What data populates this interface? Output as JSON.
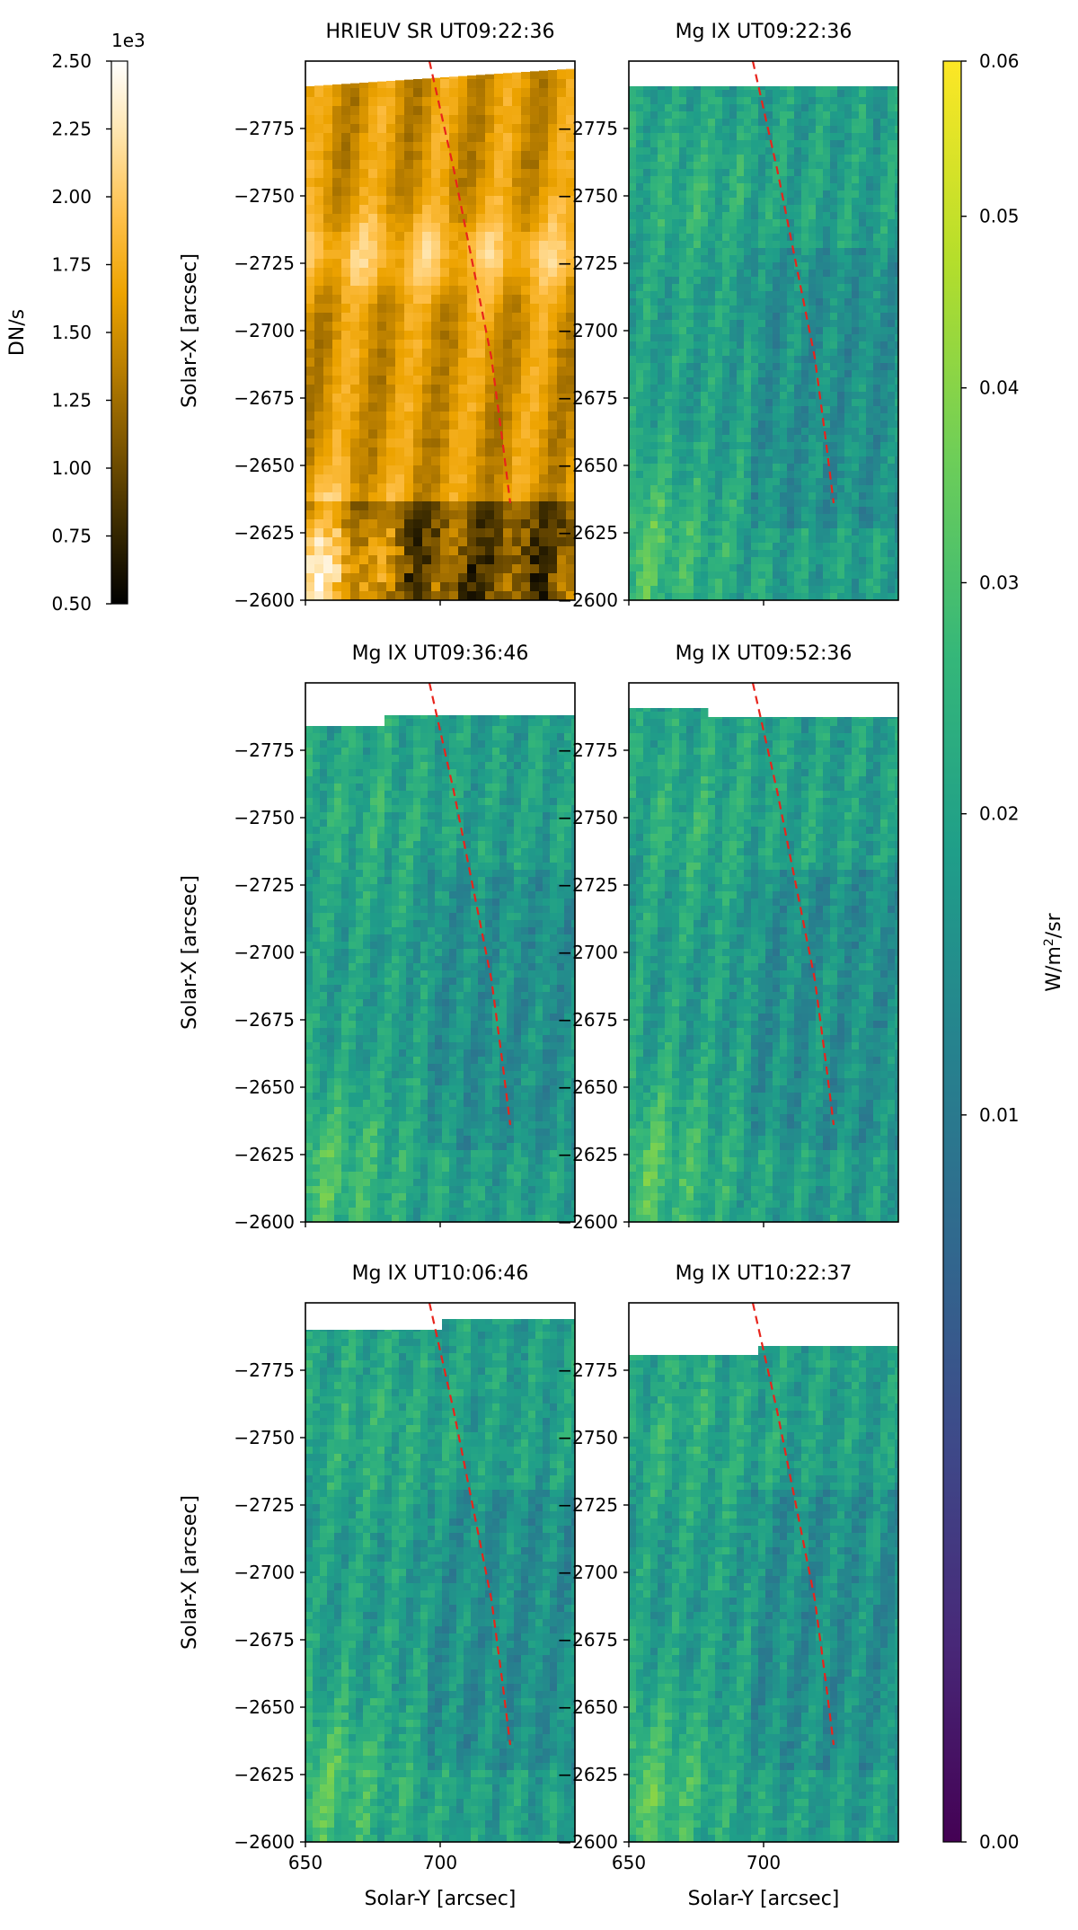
{
  "panels": [
    {
      "id": "p1",
      "title": "HRIEUV SR UT09:22:36",
      "kind": "hrieuv",
      "show_ylabel": true,
      "show_xlabel": false,
      "show_xticklabels": false
    },
    {
      "id": "p2",
      "title": "Mg IX UT09:22:36",
      "kind": "mgix",
      "show_ylabel": false,
      "show_xlabel": false,
      "show_xticklabels": false
    },
    {
      "id": "p3",
      "title": "Mg IX UT09:36:46",
      "kind": "mgix",
      "show_ylabel": true,
      "show_xlabel": false,
      "show_xticklabels": false
    },
    {
      "id": "p4",
      "title": "Mg IX UT09:52:36",
      "kind": "mgix",
      "show_ylabel": false,
      "show_xlabel": false,
      "show_xticklabels": false
    },
    {
      "id": "p5",
      "title": "Mg IX UT10:06:46",
      "kind": "mgix",
      "show_ylabel": true,
      "show_xlabel": true,
      "show_xticklabels": true
    },
    {
      "id": "p6",
      "title": "Mg IX UT10:22:37",
      "kind": "mgix",
      "show_ylabel": false,
      "show_xlabel": true,
      "show_xticklabels": true
    }
  ],
  "axes": {
    "xlabel": "Solar-Y [arcsec]",
    "ylabel": "Solar-X [arcsec]",
    "x_ticks": [
      650,
      700
    ],
    "x_tick_labels": [
      "650",
      "700"
    ],
    "x_range": [
      650,
      750
    ],
    "y_ticks": [
      -2775,
      -2750,
      -2725,
      -2700,
      -2675,
      -2650,
      -2625,
      -2600
    ],
    "y_tick_labels": [
      "−2775",
      "−2750",
      "−2725",
      "−2700",
      "−2675",
      "−2650",
      "−2625",
      "−2600"
    ],
    "y_range": [
      -2800,
      -2600
    ],
    "y_inverted": true
  },
  "track_path": {
    "note_units": "data",
    "points": [
      [
        696,
        -2800
      ],
      [
        705,
        -2760
      ],
      [
        713,
        -2720
      ],
      [
        719,
        -2690
      ],
      [
        723,
        -2660
      ],
      [
        726,
        -2636
      ]
    ]
  },
  "colorbar_hri": {
    "label": "DN/s",
    "scale_exponent": "1e3",
    "tick_values": [
      2.5,
      2.25,
      2.0,
      1.75,
      1.5,
      1.25,
      1.0,
      0.75,
      0.5
    ],
    "tick_labels": [
      "2.50",
      "2.25",
      "2.00",
      "1.75",
      "1.50",
      "1.25",
      "1.00",
      "0.75",
      "0.50"
    ],
    "colormap": [
      "#000000",
      "#3a2a00",
      "#7a5400",
      "#b77d00",
      "#eda300",
      "#ffc04a",
      "#ffe3a8",
      "#ffffff"
    ]
  },
  "colorbar_mg": {
    "label_main": "W/m",
    "label_sup": "2",
    "label_tail": "/sr",
    "scale": "sqrt",
    "tick_values": [
      0.06,
      0.05,
      0.04,
      0.03,
      0.02,
      0.01,
      0.0
    ],
    "tick_labels": [
      "0.06",
      "0.05",
      "0.04",
      "0.03",
      "0.02",
      "0.01",
      "0.00"
    ],
    "colormap": [
      "#440154",
      "#482878",
      "#3e4989",
      "#31688e",
      "#26828e",
      "#1f9e89",
      "#35b779",
      "#6ece58",
      "#b5de2b",
      "#fde725"
    ]
  },
  "colors": {
    "track": "#e8241c",
    "axes": "#000000",
    "background": "#ffffff"
  }
}
